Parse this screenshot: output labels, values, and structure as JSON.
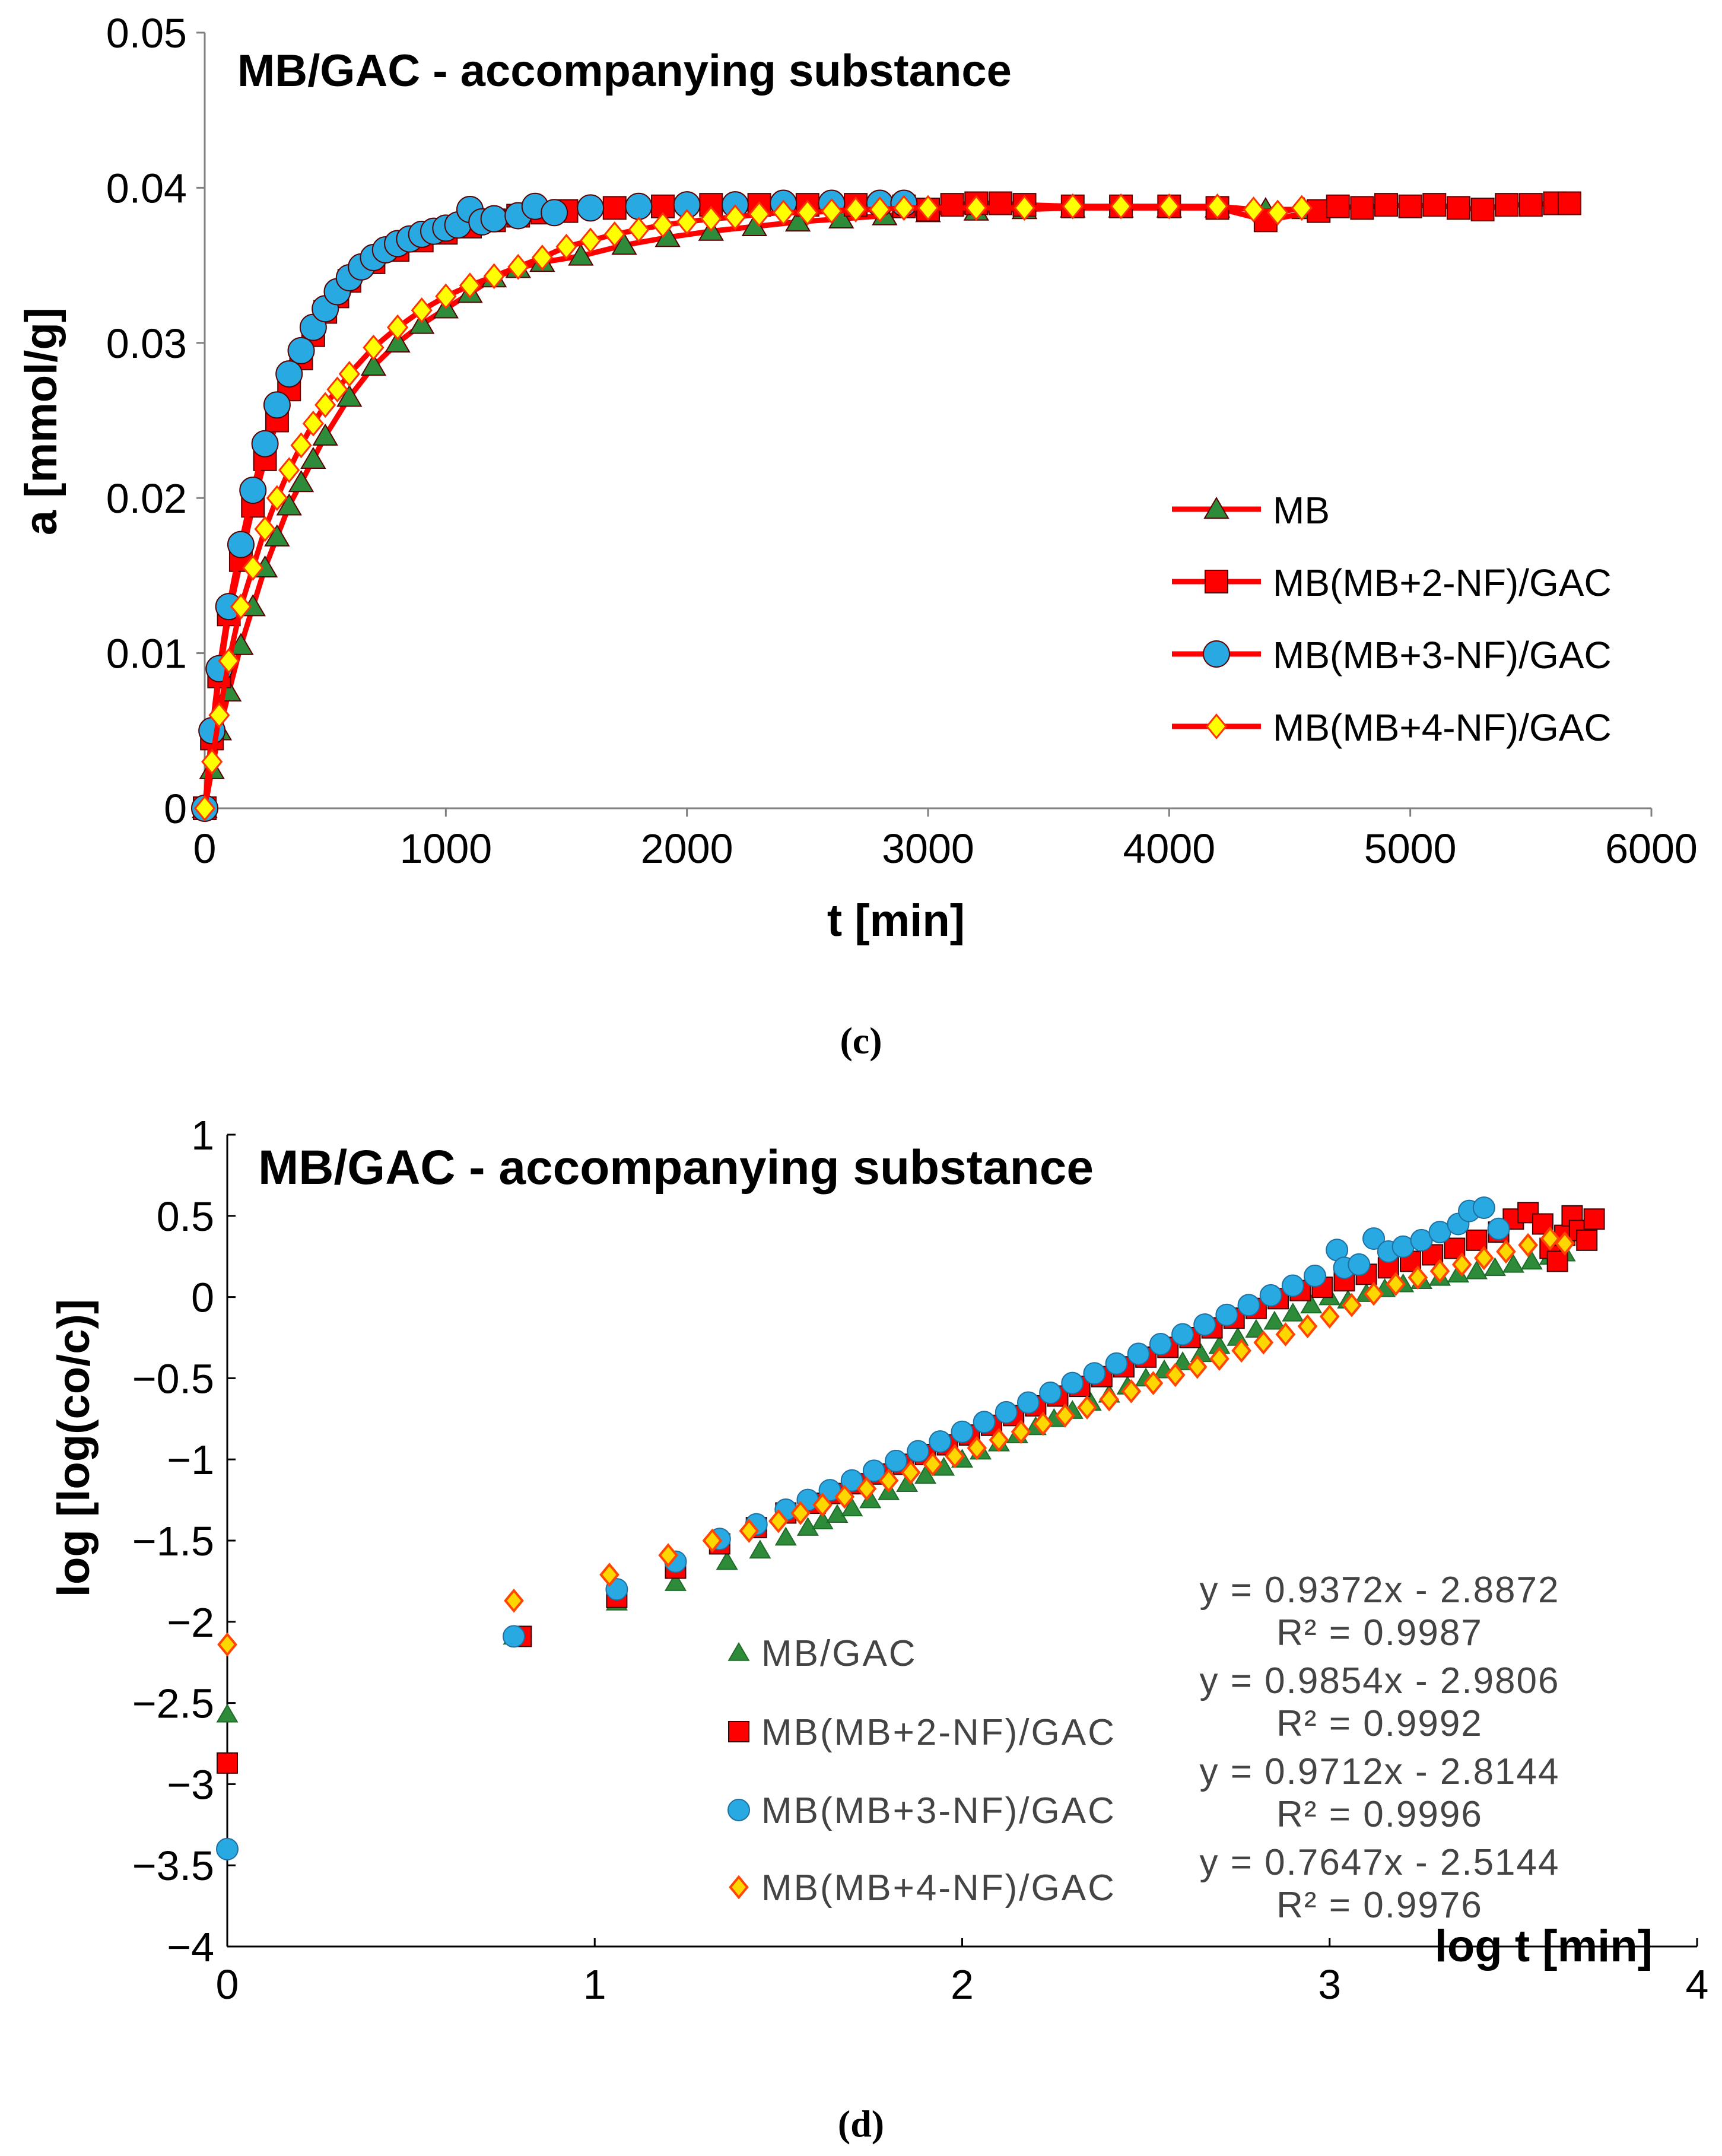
{
  "chart_data": [
    {
      "panel": "(c)",
      "type": "line",
      "title": "MB/GAC - accompanying substance",
      "xlabel": "t [min]",
      "ylabel": "a [mmol/g]",
      "xlim": [
        0,
        6000
      ],
      "ylim": [
        0,
        0.05
      ],
      "xticks": [
        0,
        1000,
        2000,
        3000,
        4000,
        5000,
        6000
      ],
      "xtick_labels": [
        "0",
        "1000",
        "2000",
        "3000",
        "4000",
        "5000",
        "6000"
      ],
      "yticks": [
        0,
        0.01,
        0.02,
        0.03,
        0.04,
        0.05
      ],
      "ytick_labels": [
        "0",
        "0.01",
        "0.02",
        "0.03",
        "0.04",
        "0.05"
      ],
      "grid": false,
      "legend_position": "right-middle",
      "series": [
        {
          "name": "MB",
          "marker": "triangle",
          "marker_color": "#2e8b3a",
          "line_color": "#ff0000",
          "x": [
            0,
            30,
            60,
            100,
            150,
            200,
            250,
            300,
            350,
            400,
            450,
            500,
            600,
            700,
            800,
            900,
            1000,
            1100,
            1200,
            1300,
            1400,
            1560,
            1740,
            1920,
            2100,
            2280,
            2460,
            2640,
            2820,
            3000,
            3200,
            3400,
            3600,
            3800,
            4000,
            4200,
            4400,
            4560
          ],
          "y": [
            0,
            0.0025,
            0.005,
            0.0075,
            0.0105,
            0.013,
            0.0155,
            0.0175,
            0.0195,
            0.021,
            0.0225,
            0.024,
            0.0265,
            0.0285,
            0.03,
            0.0312,
            0.0322,
            0.0332,
            0.0342,
            0.0348,
            0.0352,
            0.0356,
            0.0363,
            0.0368,
            0.0372,
            0.0375,
            0.0378,
            0.038,
            0.0382,
            0.0384,
            0.0385,
            0.0386,
            0.0387,
            0.0387,
            0.0387,
            0.0387,
            0.0386,
            0.0386
          ]
        },
        {
          "name": "MB(MB+2-NF)/GAC",
          "marker": "square",
          "marker_color": "#ff0000",
          "line_color": "#ff0000",
          "x": [
            0,
            30,
            60,
            100,
            150,
            200,
            250,
            300,
            350,
            400,
            450,
            500,
            550,
            600,
            700,
            800,
            900,
            1000,
            1100,
            1200,
            1300,
            1400,
            1500,
            1700,
            1900,
            2100,
            2300,
            2500,
            2700,
            2900,
            3000,
            3100,
            3200,
            3300,
            3400,
            3600,
            3800,
            4000,
            4200,
            4400,
            4620,
            4700,
            4800,
            4900,
            5000,
            5100,
            5200,
            5300,
            5400,
            5500,
            5600,
            5660
          ],
          "y": [
            0,
            0.0045,
            0.0085,
            0.0125,
            0.016,
            0.0195,
            0.0225,
            0.025,
            0.027,
            0.029,
            0.0305,
            0.032,
            0.033,
            0.034,
            0.0352,
            0.036,
            0.0366,
            0.0371,
            0.0375,
            0.0379,
            0.0382,
            0.0384,
            0.0385,
            0.0387,
            0.0388,
            0.0389,
            0.0389,
            0.0389,
            0.0389,
            0.0388,
            0.0386,
            0.0389,
            0.039,
            0.039,
            0.0389,
            0.0388,
            0.0388,
            0.0388,
            0.0387,
            0.0379,
            0.0385,
            0.0388,
            0.0387,
            0.0389,
            0.0388,
            0.0389,
            0.0387,
            0.0386,
            0.0389,
            0.0389,
            0.039,
            0.039
          ]
        },
        {
          "name": "MB(MB+3-NF)/GAC",
          "marker": "circle",
          "marker_color": "#29a9e1",
          "line_color": "#ff0000",
          "x": [
            0,
            30,
            60,
            100,
            150,
            200,
            250,
            300,
            350,
            400,
            450,
            500,
            550,
            600,
            650,
            700,
            750,
            800,
            850,
            900,
            950,
            1000,
            1050,
            1100,
            1150,
            1200,
            1300,
            1370,
            1450,
            1600,
            1800,
            2000,
            2200,
            2400,
            2600,
            2800,
            2900
          ],
          "y": [
            0,
            0.005,
            0.009,
            0.013,
            0.017,
            0.0205,
            0.0235,
            0.026,
            0.028,
            0.0295,
            0.031,
            0.0322,
            0.0333,
            0.0342,
            0.0349,
            0.0355,
            0.036,
            0.0364,
            0.0367,
            0.037,
            0.0372,
            0.0374,
            0.0376,
            0.0386,
            0.0378,
            0.038,
            0.0382,
            0.0388,
            0.0384,
            0.0387,
            0.0388,
            0.0389,
            0.0389,
            0.039,
            0.039,
            0.039,
            0.039
          ]
        },
        {
          "name": "MB(MB+4-NF)/GAC",
          "marker": "diamond",
          "marker_color": "#ffff00",
          "line_color": "#ff0000",
          "x": [
            0,
            30,
            60,
            100,
            150,
            200,
            250,
            300,
            350,
            400,
            450,
            500,
            550,
            600,
            700,
            800,
            900,
            1000,
            1100,
            1200,
            1300,
            1400,
            1500,
            1600,
            1700,
            1800,
            1900,
            2000,
            2100,
            2200,
            2300,
            2400,
            2500,
            2600,
            2700,
            2800,
            2900,
            3000,
            3200,
            3400,
            3600,
            3800,
            4000,
            4200,
            4350,
            4450,
            4550
          ],
          "y": [
            0,
            0.003,
            0.006,
            0.0095,
            0.013,
            0.0155,
            0.018,
            0.02,
            0.0218,
            0.0234,
            0.0248,
            0.026,
            0.027,
            0.028,
            0.0297,
            0.031,
            0.0321,
            0.033,
            0.0337,
            0.0343,
            0.0349,
            0.0355,
            0.0362,
            0.0366,
            0.037,
            0.0373,
            0.0376,
            0.0378,
            0.038,
            0.0381,
            0.0383,
            0.0384,
            0.0384,
            0.0385,
            0.0386,
            0.0386,
            0.0387,
            0.0387,
            0.0387,
            0.0387,
            0.0388,
            0.0388,
            0.0388,
            0.0388,
            0.0386,
            0.0384,
            0.0387
          ]
        }
      ]
    },
    {
      "panel": "(d)",
      "type": "scatter",
      "title": "MB/GAC - accompanying substance",
      "xlabel": "log t [min]",
      "ylabel": "log [log(co/c)]",
      "xlim": [
        0,
        4
      ],
      "ylim": [
        -4,
        1
      ],
      "xticks": [
        0,
        1,
        2,
        3,
        4
      ],
      "xtick_labels": [
        "0",
        "1",
        "2",
        "3",
        "4"
      ],
      "yticks": [
        -4,
        -3.5,
        -3,
        -2.5,
        -2,
        -1.5,
        -1,
        -0.5,
        0,
        0.5,
        1
      ],
      "ytick_labels": [
        "−4",
        "−3.5",
        "−3",
        "−2.5",
        "−2",
        "−1.5",
        "−1",
        "−0.5",
        "0",
        "0.5",
        "1"
      ],
      "grid": false,
      "legend_position": "bottom-center",
      "series": [
        {
          "name": "MB/GAC",
          "marker": "triangle",
          "marker_color": "#2e8b3a",
          "trend_equation": "y = 0.9372x - 2.8872",
          "r2": "R² = 0.9987",
          "x": [
            0,
            0.78,
            1.06,
            1.22,
            1.36,
            1.45,
            1.52,
            1.58,
            1.62,
            1.66,
            1.7,
            1.75,
            1.8,
            1.85,
            1.9,
            1.95,
            2,
            2.05,
            2.1,
            2.15,
            2.2,
            2.25,
            2.3,
            2.35,
            2.4,
            2.45,
            2.5,
            2.55,
            2.6,
            2.65,
            2.7,
            2.75,
            2.8,
            2.85,
            2.9,
            2.95,
            3,
            3.05,
            3.1,
            3.15,
            3.2,
            3.25,
            3.3,
            3.35,
            3.4,
            3.45,
            3.5,
            3.55,
            3.6,
            3.64
          ],
          "y": [
            -2.57,
            -2.09,
            -1.88,
            -1.76,
            -1.63,
            -1.56,
            -1.48,
            -1.42,
            -1.38,
            -1.34,
            -1.3,
            -1.25,
            -1.2,
            -1.15,
            -1.1,
            -1.05,
            -1,
            -0.95,
            -0.9,
            -0.85,
            -0.8,
            -0.75,
            -0.7,
            -0.65,
            -0.6,
            -0.55,
            -0.5,
            -0.45,
            -0.4,
            -0.35,
            -0.3,
            -0.25,
            -0.2,
            -0.15,
            -0.1,
            -0.05,
            0,
            -0.02,
            0.02,
            0.05,
            0.08,
            0.1,
            0.12,
            0.14,
            0.16,
            0.18,
            0.2,
            0.22,
            0.25,
            0.27
          ]
        },
        {
          "name": "MB(MB+2-NF)/GAC",
          "marker": "square",
          "marker_color": "#ff0000",
          "trend_equation": "y = 0.9854x - 2.9806",
          "r2": "R² = 0.9992",
          "x": [
            0,
            0.8,
            1.06,
            1.22,
            1.34,
            1.44,
            1.52,
            1.6,
            1.66,
            1.72,
            1.78,
            1.84,
            1.9,
            1.96,
            2.02,
            2.08,
            2.14,
            2.2,
            2.26,
            2.32,
            2.38,
            2.44,
            2.5,
            2.56,
            2.62,
            2.68,
            2.74,
            2.8,
            2.86,
            2.92,
            2.98,
            3.04,
            3.1,
            3.16,
            3.22,
            3.28,
            3.34,
            3.4,
            3.46,
            3.5,
            3.54,
            3.58,
            3.6,
            3.62,
            3.64,
            3.66,
            3.68,
            3.7,
            3.72
          ],
          "y": [
            -2.87,
            -2.09,
            -1.85,
            -1.67,
            -1.52,
            -1.42,
            -1.33,
            -1.27,
            -1.21,
            -1.15,
            -1.09,
            -1.03,
            -0.97,
            -0.91,
            -0.85,
            -0.79,
            -0.73,
            -0.67,
            -0.61,
            -0.55,
            -0.49,
            -0.43,
            -0.37,
            -0.31,
            -0.25,
            -0.19,
            -0.13,
            -0.07,
            -0.01,
            0.04,
            0.06,
            0.1,
            0.14,
            0.18,
            0.22,
            0.26,
            0.3,
            0.35,
            0.4,
            0.48,
            0.52,
            0.45,
            0.3,
            0.22,
            0.38,
            0.5,
            0.41,
            0.35,
            0.48
          ]
        },
        {
          "name": "MB(MB+3-NF)/GAC",
          "marker": "circle",
          "marker_color": "#29a9e1",
          "trend_equation": "y = 0.9712x - 2.8144",
          "r2": "R² = 0.9996",
          "x": [
            0,
            0.78,
            1.06,
            1.22,
            1.34,
            1.44,
            1.52,
            1.58,
            1.64,
            1.7,
            1.76,
            1.82,
            1.88,
            1.94,
            2,
            2.06,
            2.12,
            2.18,
            2.24,
            2.3,
            2.36,
            2.42,
            2.48,
            2.54,
            2.6,
            2.66,
            2.72,
            2.78,
            2.84,
            2.9,
            2.96,
            3.02,
            3.04,
            3.08,
            3.12,
            3.16,
            3.2,
            3.25,
            3.3,
            3.35,
            3.38,
            3.42,
            3.46
          ],
          "y": [
            -3.4,
            -2.09,
            -1.8,
            -1.63,
            -1.49,
            -1.4,
            -1.31,
            -1.25,
            -1.19,
            -1.13,
            -1.07,
            -1.01,
            -0.95,
            -0.89,
            -0.83,
            -0.77,
            -0.71,
            -0.65,
            -0.59,
            -0.53,
            -0.47,
            -0.41,
            -0.35,
            -0.29,
            -0.23,
            -0.17,
            -0.11,
            -0.05,
            0.01,
            0.07,
            0.13,
            0.29,
            0.18,
            0.2,
            0.36,
            0.28,
            0.31,
            0.35,
            0.4,
            0.45,
            0.53,
            0.55,
            0.42
          ]
        },
        {
          "name": "MB(MB+4-NF)/GAC",
          "marker": "diamond",
          "marker_color": "#ffd700",
          "trend_equation": "y = 0.7647x - 2.5144",
          "r2": "R² = 0.9976",
          "x": [
            0,
            0.78,
            1.04,
            1.2,
            1.32,
            1.42,
            1.5,
            1.56,
            1.62,
            1.68,
            1.74,
            1.8,
            1.86,
            1.92,
            1.98,
            2.04,
            2.1,
            2.16,
            2.22,
            2.28,
            2.34,
            2.4,
            2.46,
            2.52,
            2.58,
            2.64,
            2.7,
            2.76,
            2.82,
            2.88,
            2.94,
            3,
            3.06,
            3.12,
            3.18,
            3.24,
            3.3,
            3.36,
            3.42,
            3.48,
            3.54,
            3.6,
            3.64
          ],
          "y": [
            -2.14,
            -1.87,
            -1.71,
            -1.59,
            -1.5,
            -1.44,
            -1.38,
            -1.33,
            -1.28,
            -1.23,
            -1.18,
            -1.13,
            -1.08,
            -1.03,
            -0.98,
            -0.93,
            -0.88,
            -0.83,
            -0.78,
            -0.73,
            -0.68,
            -0.63,
            -0.58,
            -0.53,
            -0.48,
            -0.43,
            -0.38,
            -0.33,
            -0.28,
            -0.23,
            -0.18,
            -0.12,
            -0.05,
            0.02,
            0.08,
            0.12,
            0.16,
            0.2,
            0.24,
            0.28,
            0.32,
            0.36,
            0.33
          ]
        }
      ]
    }
  ]
}
